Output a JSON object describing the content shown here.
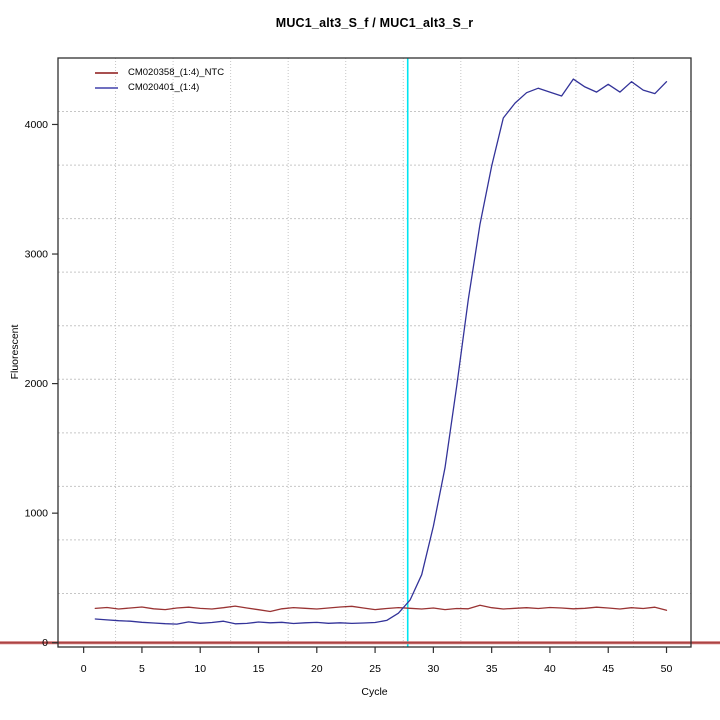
{
  "chart_data": {
    "type": "line",
    "title": "MUC1_alt3_S_f / MUC1_alt3_S_r",
    "xlabel": "Cycle",
    "ylabel": "Fluorescent",
    "xlim": [
      -2.2,
      52.1
    ],
    "ylim": [
      -33,
      4513
    ],
    "xticks": [
      0,
      5,
      10,
      15,
      20,
      25,
      30,
      35,
      40,
      45,
      50
    ],
    "yticks": [
      0,
      1000,
      2000,
      3000,
      4000
    ],
    "grid": {
      "cols": 11,
      "rows": 11,
      "color": "#c6c6c6",
      "visible": true
    },
    "legend_position": "top-left",
    "x": [
      1,
      2,
      3,
      4,
      5,
      6,
      7,
      8,
      9,
      10,
      11,
      12,
      13,
      14,
      15,
      16,
      17,
      18,
      19,
      20,
      21,
      22,
      23,
      24,
      25,
      26,
      27,
      28,
      29,
      30,
      31,
      32,
      33,
      34,
      35,
      36,
      37,
      38,
      39,
      40,
      41,
      42,
      43,
      44,
      45,
      46,
      47,
      48,
      49,
      50
    ],
    "series": [
      {
        "name": "CM020358_(1:4)_NTC",
        "color": "#993333",
        "legend_color": "#a85050",
        "values": [
          265,
          272,
          260,
          268,
          276,
          262,
          256,
          268,
          274,
          265,
          260,
          270,
          283,
          268,
          255,
          241,
          262,
          271,
          266,
          260,
          268,
          276,
          281,
          268,
          256,
          264,
          271,
          266,
          260,
          268,
          256,
          264,
          262,
          289,
          270,
          260,
          266,
          270,
          264,
          272,
          268,
          262,
          266,
          274,
          268,
          260,
          270,
          264,
          274,
          250
        ]
      },
      {
        "name": "CM020401_(1:4)",
        "color": "#333399",
        "legend_color": "#7070c0",
        "values": [
          183,
          176,
          170,
          166,
          158,
          152,
          147,
          144,
          161,
          150,
          156,
          166,
          146,
          149,
          160,
          154,
          158,
          148,
          154,
          157,
          150,
          154,
          149,
          152,
          156,
          172,
          228,
          330,
          525,
          900,
          1350,
          1980,
          2650,
          3230,
          3680,
          4050,
          4165,
          4245,
          4280,
          4250,
          4220,
          4350,
          4290,
          4250,
          4310,
          4250,
          4330,
          4265,
          4238,
          4330
        ]
      }
    ],
    "crossing_point_line": {
      "cycle": 27.8,
      "color": "#00e6f2",
      "orientation": "vertical"
    },
    "zero_line": {
      "value": 0,
      "color": "#aa4444",
      "halo_color": "#cc7070",
      "full_width": true
    }
  },
  "colors": {
    "background": "#ffffff",
    "box_border": "#303030",
    "tick": "#303030",
    "text": "#000000"
  }
}
